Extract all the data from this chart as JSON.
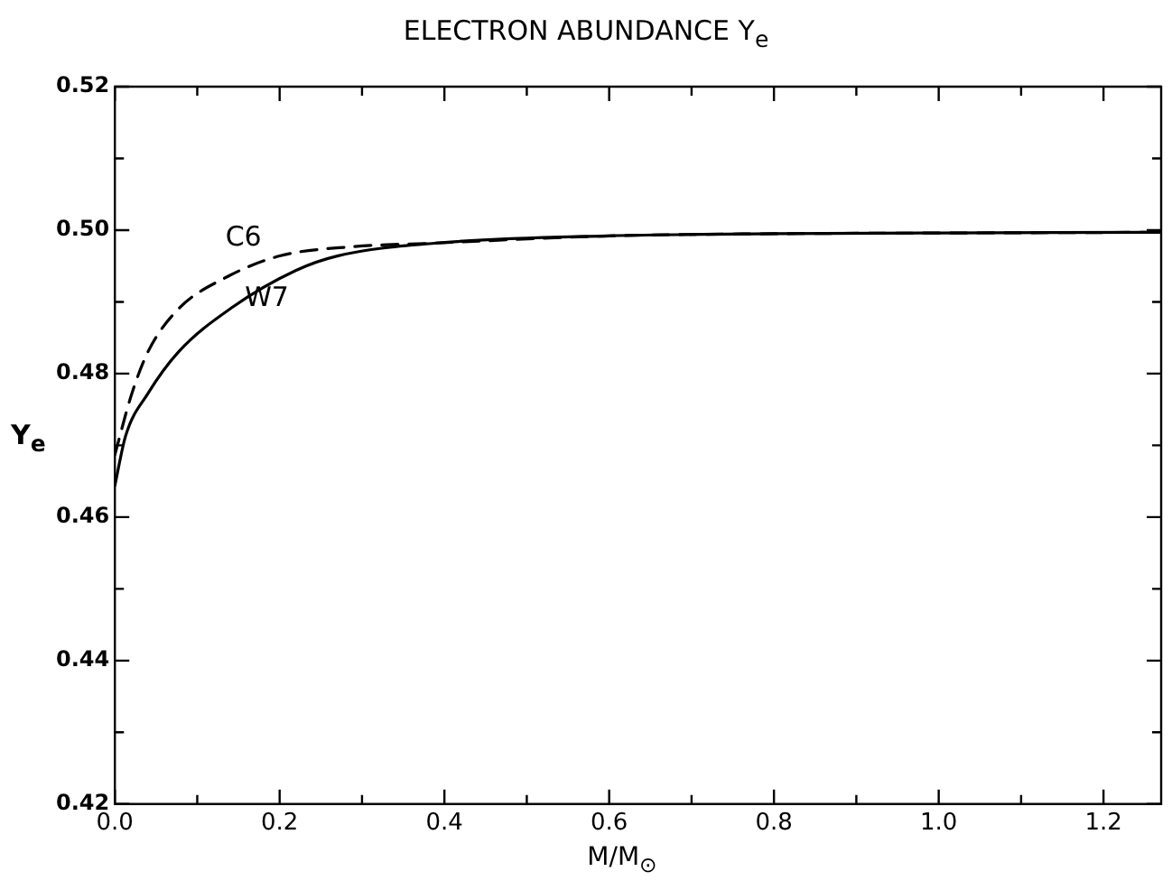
{
  "chart_data": {
    "type": "line",
    "title": "ELECTRON ABUNDANCE Y$_{e}$",
    "xlabel": "M/M$_{⊙}$",
    "ylabel": "Y$_{e}$",
    "xlim": [
      0,
      1.27
    ],
    "ylim": [
      0.42,
      0.52
    ],
    "xticks": [
      {
        "value": 0,
        "label": "0.0"
      },
      {
        "value": 0.1,
        "label": null
      },
      {
        "value": 0.2,
        "label": "0.2"
      },
      {
        "value": 0.3,
        "label": null
      },
      {
        "value": 0.4,
        "label": "0.4"
      },
      {
        "value": 0.5,
        "label": null
      },
      {
        "value": 0.6,
        "label": "0.6"
      },
      {
        "value": 0.7,
        "label": null
      },
      {
        "value": 0.8,
        "label": "0.8"
      },
      {
        "value": 0.9,
        "label": null
      },
      {
        "value": 1.0,
        "label": "1.0"
      },
      {
        "value": 1.1,
        "label": null
      },
      {
        "value": 1.2,
        "label": "1.2"
      }
    ],
    "yticks": [
      0.42,
      {
        "value": 0.43,
        "label": null
      },
      0.44,
      {
        "value": 0.45,
        "label": null
      },
      0.46,
      {
        "value": 0.47,
        "label": null
      },
      0.48,
      {
        "value": 0.49,
        "label": null
      },
      {
        "value": 0.5,
        "label": "0.50"
      },
      {
        "value": 0.51,
        "label": null
      },
      0.52
    ],
    "grid": false,
    "legend": false,
    "marker": "none",
    "series": [
      {
        "name": "C6",
        "color": "#000000",
        "line_style": "dashed",
        "x": [
          0,
          0.02,
          0.04,
          0.077,
          0.133,
          0.2,
          0.29,
          0.39,
          0.6,
          0.8,
          1.0,
          1.27
        ],
        "values": [
          0.4687,
          0.477,
          0.483,
          0.489,
          0.4933,
          0.4964,
          0.4977,
          0.4982,
          0.4992,
          0.4995,
          0.4996,
          0.4997
        ]
      },
      {
        "name": "W7",
        "color": "#000000",
        "line_style": "solid",
        "x": [
          0,
          0.013,
          0.04,
          0.077,
          0.142,
          0.22,
          0.27,
          0.39,
          0.6,
          0.8,
          1.0,
          1.27
        ],
        "values": [
          0.4644,
          0.4713,
          0.4772,
          0.483,
          0.4892,
          0.4944,
          0.4964,
          0.4982,
          0.4992,
          0.4995,
          0.4996,
          0.4997
        ]
      }
    ]
  }
}
